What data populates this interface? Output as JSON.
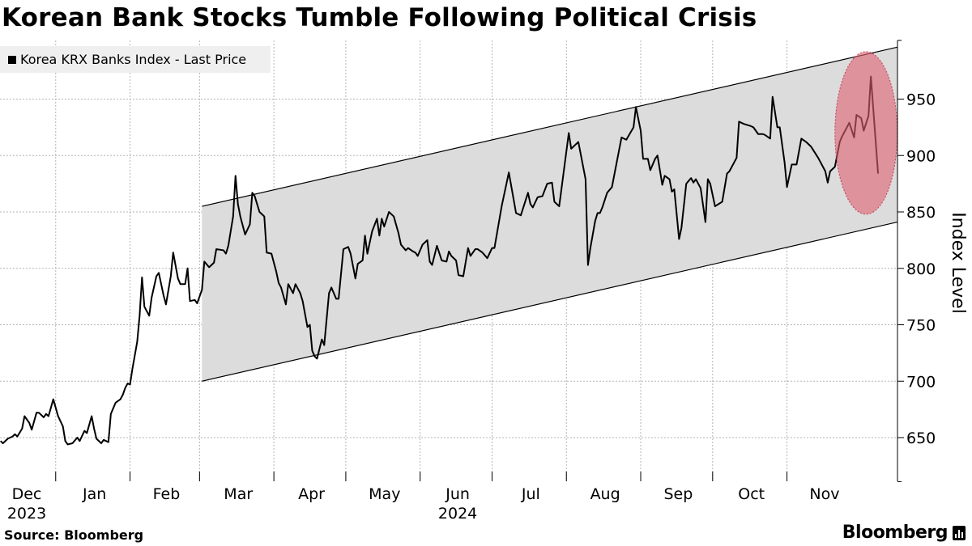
{
  "title": "Korean Bank Stocks Tumble Following Political Crisis",
  "legend": {
    "label": "Korea KRX Banks Index - Last Price",
    "color": "#000000"
  },
  "footer": {
    "source": "Source: Bloomberg",
    "brand": "Bloomberg"
  },
  "colors": {
    "channel_fill": "#dcdcdc",
    "highlight": "#e0606f",
    "line": "#000000",
    "grid": "#b5b5b5"
  },
  "chart_data": {
    "type": "line",
    "title": "Korean Bank Stocks Tumble Following Political Crisis",
    "xlabel": "",
    "ylabel": "Index Level",
    "x_units": "days since 2023-12-01",
    "xlim": [
      0,
      382
    ],
    "ylim": [
      611,
      1002
    ],
    "grid": true,
    "legend_position": "top-left",
    "y_ticks": [
      650,
      700,
      750,
      800,
      850,
      900,
      950
    ],
    "x_ticks": [
      {
        "label": "Dec",
        "year": "2023",
        "day": 0
      },
      {
        "label": "Jan",
        "year": "",
        "day": 31
      },
      {
        "label": "Feb",
        "year": "",
        "day": 62
      },
      {
        "label": "Mar",
        "year": "",
        "day": 91
      },
      {
        "label": "Apr",
        "year": "",
        "day": 122
      },
      {
        "label": "May",
        "year": "",
        "day": 152
      },
      {
        "label": "Jun",
        "year": "2024",
        "day": 183
      },
      {
        "label": "Jul",
        "year": "",
        "day": 213
      },
      {
        "label": "Aug",
        "year": "",
        "day": 244
      },
      {
        "label": "Sep",
        "year": "",
        "day": 275
      },
      {
        "label": "Oct",
        "year": "",
        "day": 305
      },
      {
        "label": "Nov",
        "year": "",
        "day": 336
      }
    ],
    "channel": {
      "upper": [
        [
          92,
          855
        ],
        [
          382,
          996
        ]
      ],
      "lower": [
        [
          92,
          700
        ],
        [
          382,
          841
        ]
      ]
    },
    "highlight": {
      "center": [
        369,
        920
      ],
      "half_width_days": 13,
      "half_height": 72
    },
    "series": [
      {
        "name": "Korea KRX Banks Index - Last Price",
        "points": [
          [
            8,
            647
          ],
          [
            9,
            645
          ],
          [
            11,
            649
          ],
          [
            13,
            651
          ],
          [
            14,
            653
          ],
          [
            15,
            651
          ],
          [
            17,
            658
          ],
          [
            18,
            669
          ],
          [
            20,
            663
          ],
          [
            21,
            657
          ],
          [
            23,
            672
          ],
          [
            24,
            672
          ],
          [
            26,
            668
          ],
          [
            27,
            671
          ],
          [
            28,
            669
          ],
          [
            30,
            684
          ],
          [
            32,
            669
          ],
          [
            34,
            660
          ],
          [
            35,
            647
          ],
          [
            36,
            644
          ],
          [
            38,
            645
          ],
          [
            40,
            650
          ],
          [
            41,
            647
          ],
          [
            43,
            656
          ],
          [
            44,
            654
          ],
          [
            46,
            669
          ],
          [
            47,
            658
          ],
          [
            48,
            649
          ],
          [
            50,
            645
          ],
          [
            51,
            648
          ],
          [
            53,
            646
          ],
          [
            54,
            671
          ],
          [
            56,
            681
          ],
          [
            58,
            684
          ],
          [
            59,
            688
          ],
          [
            60,
            694
          ],
          [
            61,
            698
          ],
          [
            62,
            697
          ],
          [
            63,
            711
          ],
          [
            65,
            735
          ],
          [
            66,
            758
          ],
          [
            67,
            792
          ],
          [
            68,
            766
          ],
          [
            70,
            758
          ],
          [
            71,
            774
          ],
          [
            73,
            793
          ],
          [
            74,
            796
          ],
          [
            76,
            776
          ],
          [
            77,
            768
          ],
          [
            79,
            793
          ],
          [
            80,
            814
          ],
          [
            82,
            791
          ],
          [
            83,
            786
          ],
          [
            85,
            786
          ],
          [
            86,
            800
          ],
          [
            87,
            771
          ],
          [
            89,
            772
          ],
          [
            90,
            769
          ],
          [
            92,
            781
          ],
          [
            93,
            806
          ],
          [
            95,
            801
          ],
          [
            97,
            805
          ],
          [
            98,
            817
          ],
          [
            101,
            816
          ],
          [
            102,
            813
          ],
          [
            103,
            820
          ],
          [
            105,
            846
          ],
          [
            106,
            882
          ],
          [
            107,
            857
          ],
          [
            108,
            846
          ],
          [
            110,
            830
          ],
          [
            112,
            839
          ],
          [
            113,
            867
          ],
          [
            114,
            864
          ],
          [
            116,
            850
          ],
          [
            117,
            848
          ],
          [
            118,
            846
          ],
          [
            119,
            814
          ],
          [
            121,
            813
          ],
          [
            123,
            797
          ],
          [
            124,
            787
          ],
          [
            125,
            783
          ],
          [
            127,
            768
          ],
          [
            128,
            786
          ],
          [
            130,
            778
          ],
          [
            131,
            786
          ],
          [
            133,
            778
          ],
          [
            134,
            771
          ],
          [
            136,
            748
          ],
          [
            137,
            750
          ],
          [
            138,
            727
          ],
          [
            139,
            722
          ],
          [
            140,
            720
          ],
          [
            142,
            737
          ],
          [
            143,
            732
          ],
          [
            145,
            778
          ],
          [
            146,
            783
          ],
          [
            148,
            773
          ],
          [
            149,
            773
          ],
          [
            151,
            817
          ],
          [
            153,
            819
          ],
          [
            154,
            813
          ],
          [
            156,
            791
          ],
          [
            157,
            804
          ],
          [
            159,
            807
          ],
          [
            160,
            829
          ],
          [
            161,
            813
          ],
          [
            163,
            833
          ],
          [
            165,
            844
          ],
          [
            166,
            829
          ],
          [
            167,
            844
          ],
          [
            168,
            837
          ],
          [
            170,
            850
          ],
          [
            172,
            846
          ],
          [
            174,
            831
          ],
          [
            175,
            821
          ],
          [
            177,
            816
          ],
          [
            178,
            818
          ],
          [
            180,
            815
          ],
          [
            181,
            814
          ],
          [
            182,
            811
          ],
          [
            184,
            821
          ],
          [
            186,
            825
          ],
          [
            187,
            806
          ],
          [
            188,
            803
          ],
          [
            190,
            820
          ],
          [
            192,
            807
          ],
          [
            194,
            806
          ],
          [
            195,
            815
          ],
          [
            196,
            811
          ],
          [
            198,
            807
          ],
          [
            199,
            794
          ],
          [
            201,
            793
          ],
          [
            203,
            818
          ],
          [
            204,
            811
          ],
          [
            206,
            817
          ],
          [
            207,
            817
          ],
          [
            209,
            814
          ],
          [
            211,
            809
          ],
          [
            213,
            818
          ],
          [
            214,
            818
          ],
          [
            217,
            855
          ],
          [
            220,
            885
          ],
          [
            223,
            849
          ],
          [
            225,
            847
          ],
          [
            228,
            867
          ],
          [
            229,
            857
          ],
          [
            230,
            854
          ],
          [
            232,
            863
          ],
          [
            234,
            864
          ],
          [
            236,
            875
          ],
          [
            238,
            876
          ],
          [
            239,
            859
          ],
          [
            241,
            855
          ],
          [
            245,
            920
          ],
          [
            246,
            906
          ],
          [
            249,
            912
          ],
          [
            252,
            879
          ],
          [
            253,
            803
          ],
          [
            254,
            818
          ],
          [
            256,
            842
          ],
          [
            257,
            849
          ],
          [
            258,
            849
          ],
          [
            259,
            854
          ],
          [
            261,
            867
          ],
          [
            263,
            872
          ],
          [
            267,
            916
          ],
          [
            269,
            914
          ],
          [
            272,
            925
          ],
          [
            273,
            943
          ],
          [
            275,
            922
          ],
          [
            276,
            897
          ],
          [
            278,
            897
          ],
          [
            279,
            887
          ],
          [
            281,
            897
          ],
          [
            282,
            900
          ],
          [
            284,
            874
          ],
          [
            285,
            882
          ],
          [
            287,
            879
          ],
          [
            288,
            868
          ],
          [
            289,
            870
          ],
          [
            291,
            826
          ],
          [
            292,
            836
          ],
          [
            294,
            875
          ],
          [
            296,
            880
          ],
          [
            297,
            876
          ],
          [
            298,
            879
          ],
          [
            300,
            871
          ],
          [
            302,
            841
          ],
          [
            303,
            879
          ],
          [
            304,
            875
          ],
          [
            306,
            855
          ],
          [
            309,
            859
          ],
          [
            311,
            884
          ],
          [
            312,
            886
          ],
          [
            315,
            898
          ],
          [
            316,
            930
          ],
          [
            318,
            928
          ],
          [
            321,
            926
          ],
          [
            322,
            925
          ],
          [
            324,
            919
          ],
          [
            326,
            919
          ],
          [
            327,
            918
          ],
          [
            329,
            915
          ],
          [
            330,
            952
          ],
          [
            332,
            925
          ],
          [
            333,
            925
          ],
          [
            335,
            894
          ],
          [
            336,
            872
          ],
          [
            338,
            892
          ],
          [
            340,
            892
          ],
          [
            342,
            915
          ],
          [
            344,
            912
          ],
          [
            346,
            908
          ],
          [
            349,
            898
          ],
          [
            352,
            886
          ],
          [
            353,
            876
          ],
          [
            354,
            886
          ],
          [
            356,
            890
          ],
          [
            358,
            912
          ],
          [
            359,
            917
          ],
          [
            362,
            929
          ],
          [
            364,
            916
          ],
          [
            365,
            936
          ],
          [
            367,
            933
          ],
          [
            368,
            922
          ],
          [
            370,
            935
          ],
          [
            371,
            970
          ],
          [
            374,
            884
          ]
        ]
      }
    ]
  }
}
